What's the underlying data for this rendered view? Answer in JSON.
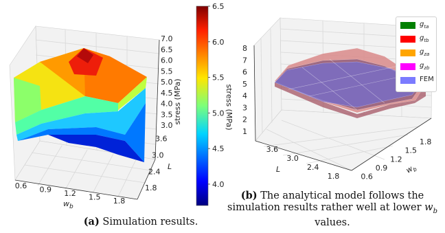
{
  "chart_data": [
    {
      "type": "surface",
      "xlabel": "w_b",
      "ylabel": "L",
      "zlabel": "stress (MPa)",
      "colorbar_label": "stress (MPa)",
      "x_ticks": [
        "0.6",
        "0.9",
        "1.2",
        "1.5",
        "1.8"
      ],
      "y_ticks": [
        "1.8",
        "2.4",
        "3.0",
        "3.6"
      ],
      "z_ticks": [
        "3.0",
        "3.5",
        "4.0",
        "4.5",
        "5.0",
        "5.5",
        "6.0",
        "6.5",
        "7.0"
      ],
      "colorbar_ticks": [
        "4.0",
        "4.5",
        "5.0",
        "5.5",
        "6.0",
        "6.5"
      ],
      "colormap": "jet",
      "colorbar_range": [
        3.7,
        6.5
      ],
      "x": [
        0.6,
        1.2,
        1.8
      ],
      "y": [
        1.8,
        2.8,
        3.8
      ],
      "z_grid": [
        [
          3.9,
          5.0,
          4.8
        ],
        [
          4.2,
          6.5,
          5.4
        ],
        [
          3.6,
          4.8,
          4.9
        ]
      ],
      "caption_label": "(a)",
      "caption_text": "Simulation results."
    },
    {
      "type": "surface",
      "xlabel": "w_b",
      "ylabel": "L",
      "x_ticks": [
        "0.6",
        "0.9",
        "1.2",
        "1.5",
        "1.8"
      ],
      "y_ticks": [
        "1.8",
        "2.4",
        "3.0",
        "3.6"
      ],
      "z_ticks": [
        "1",
        "2",
        "3",
        "4",
        "5",
        "6",
        "7",
        "8"
      ],
      "series": [
        {
          "name": "g_ta",
          "color": "#008000"
        },
        {
          "name": "g_tb",
          "color": "#ff0000"
        },
        {
          "name": "g_za",
          "color": "#ffa500"
        },
        {
          "name": "g_zb",
          "color": "#ff00ff"
        },
        {
          "name": "FEM",
          "color": "#7b7bff"
        }
      ],
      "caption_label": "(b)",
      "caption_text": "The analytical model follows the simulation results rather well at lower w_b values."
    }
  ]
}
